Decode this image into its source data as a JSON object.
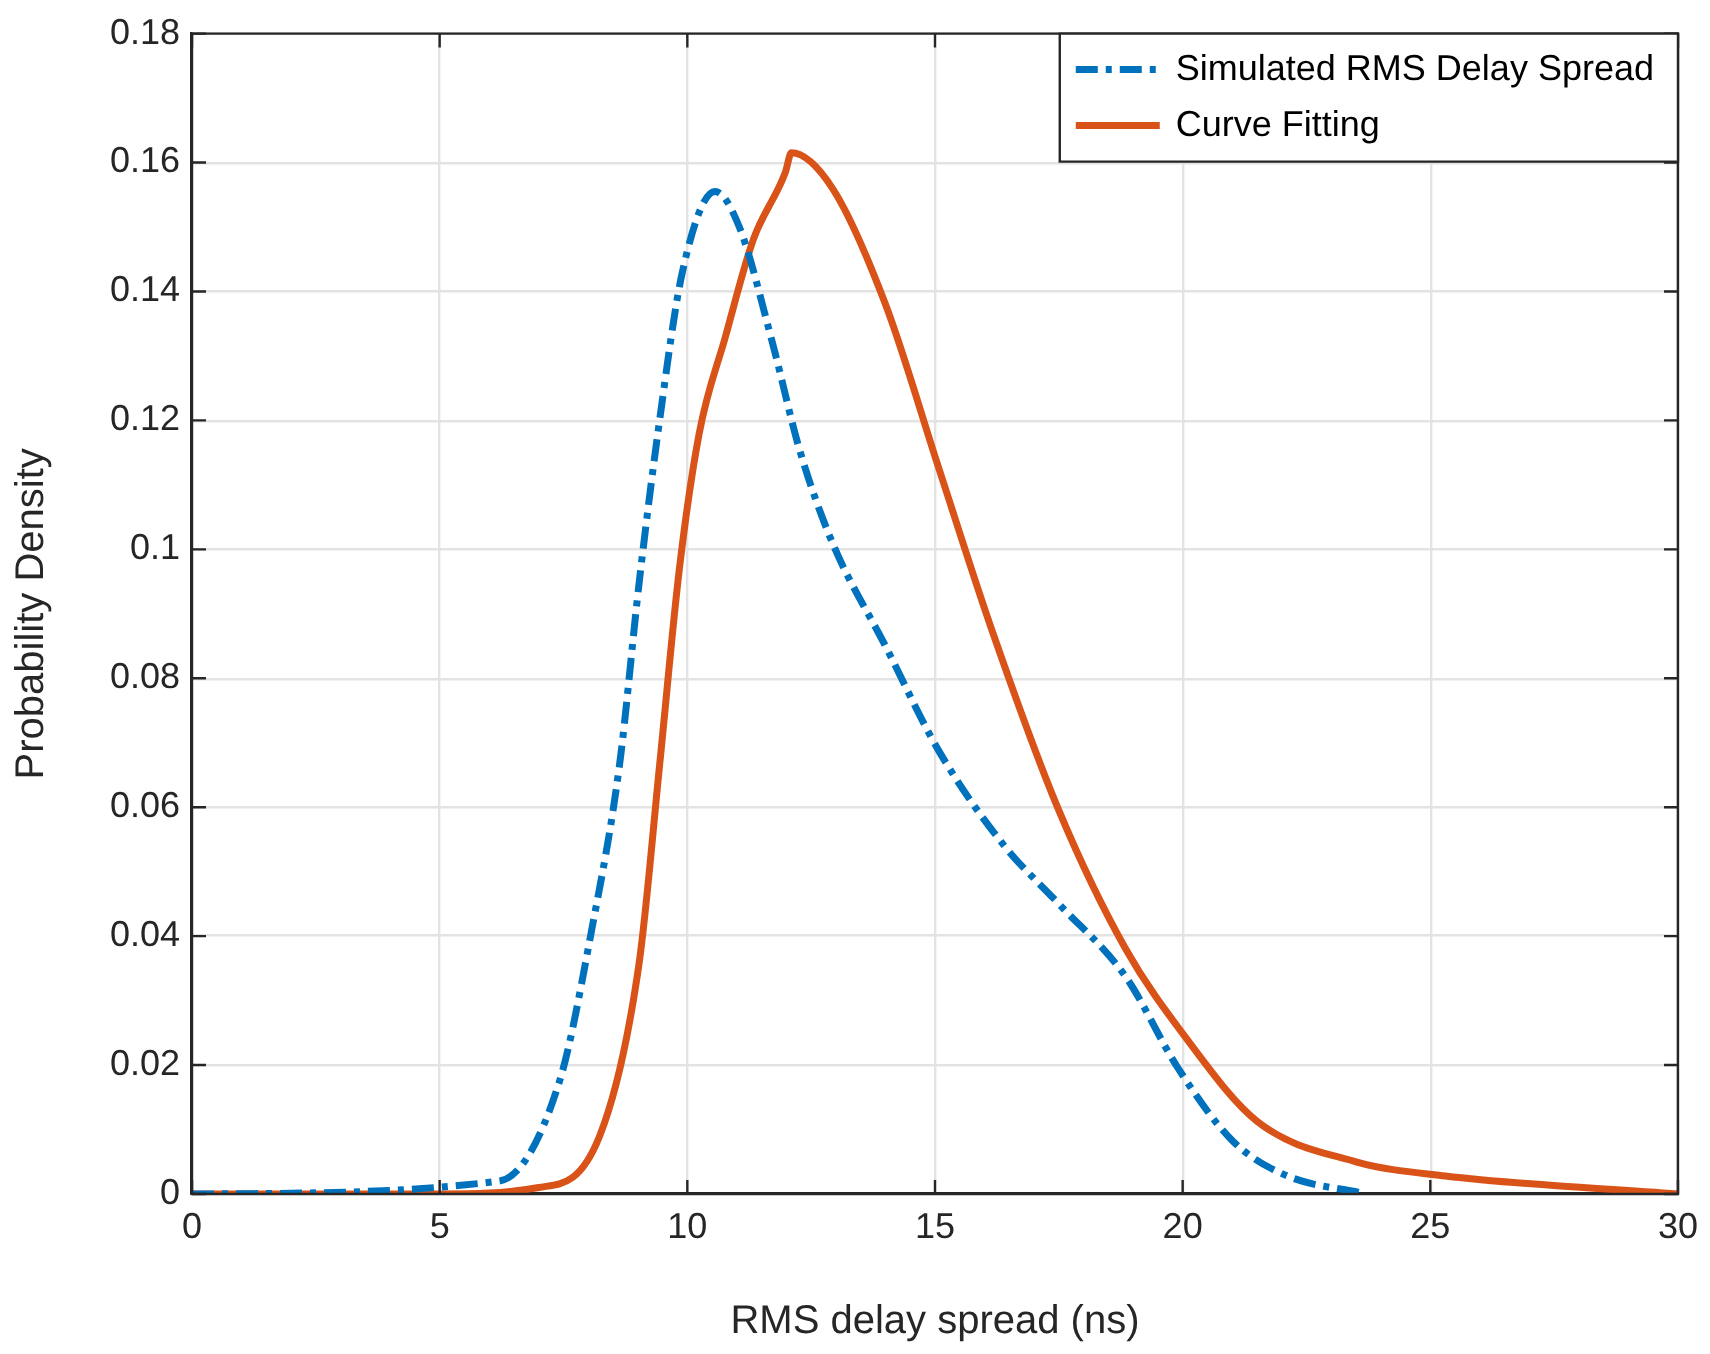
{
  "chart_data": {
    "type": "line",
    "xlabel": "RMS delay spread (ns)",
    "ylabel": "Probability Density",
    "xlim": [
      0,
      30
    ],
    "xticks": [
      0,
      5,
      10,
      15,
      20,
      25,
      30
    ],
    "ylim": [
      0,
      0.18
    ],
    "yticks": [
      0,
      0.02,
      0.04,
      0.06,
      0.08,
      0.1,
      0.12,
      0.14,
      0.16,
      0.18
    ],
    "grid": true,
    "legend": "top right",
    "marker": "none",
    "series": [
      {
        "name": "Simulated RMS Delay Spread",
        "color": "#0072bd",
        "line_style": "dashed",
        "x": [
          0,
          6.2,
          7.42,
          8.07,
          8.63,
          9.03,
          9.44,
          9.9,
          10.56,
          11.05,
          11.72,
          12.26,
          12.93,
          14.0,
          15.08,
          16.4,
          17.5,
          18.85,
          19.9,
          21.0,
          22.05,
          23.7
        ],
        "values": [
          0,
          0.002,
          0.0175,
          0.041,
          0.0665,
          0.095,
          0.12,
          0.143,
          0.1555,
          0.15,
          0.132,
          0.1156,
          0.101,
          0.085,
          0.0687,
          0.054,
          0.045,
          0.0337,
          0.0196,
          0.0083,
          0.003,
          0
        ]
      },
      {
        "name": "Curve Fitting",
        "color": "#d95319",
        "line_style": "solid",
        "x": [
          0,
          5,
          7.0,
          8.23,
          9.03,
          9.44,
          9.84,
          10.24,
          10.77,
          11.33,
          11.98,
          12.1,
          12.93,
          14.0,
          15.08,
          16.17,
          17.5,
          18.85,
          20.04,
          21.5,
          23.5,
          25.3,
          30
        ],
        "values": [
          0,
          0,
          0.001,
          0.009,
          0.036,
          0.0665,
          0.097,
          0.118,
          0.133,
          0.148,
          0.1585,
          0.1615,
          0.156,
          0.138,
          0.1125,
          0.087,
          0.0595,
          0.038,
          0.0245,
          0.0113,
          0.005,
          0.0028,
          0
        ]
      }
    ]
  }
}
